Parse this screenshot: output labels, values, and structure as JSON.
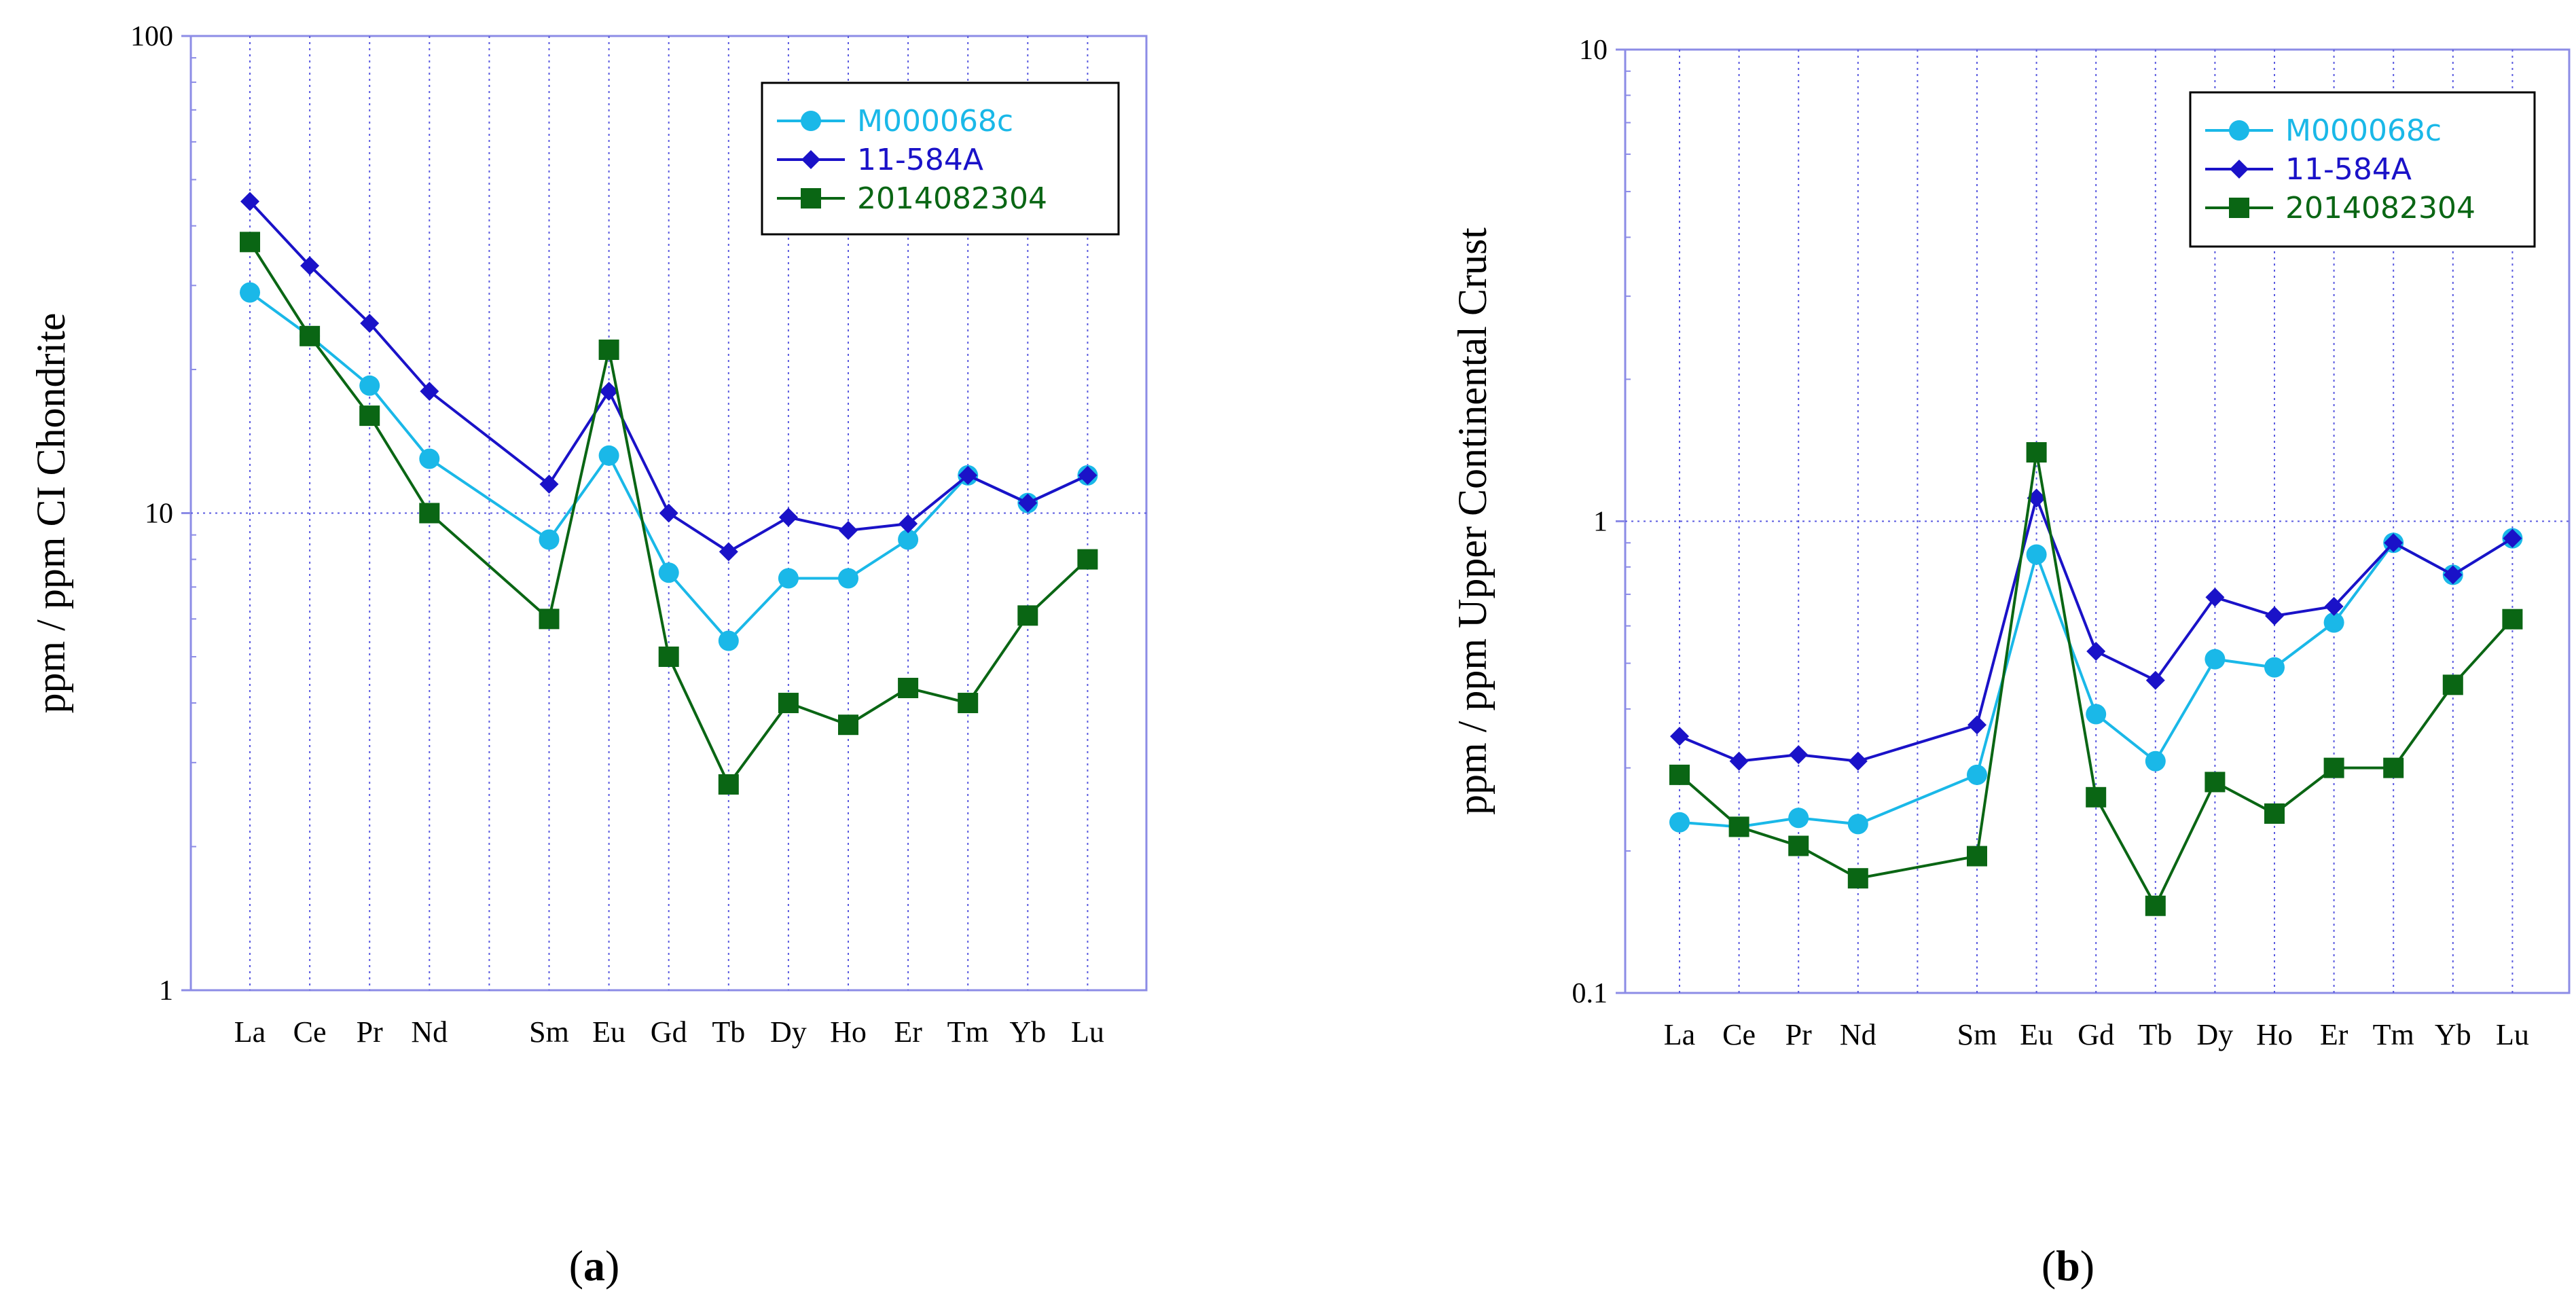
{
  "chart_data": [
    {
      "type": "line",
      "panel_label": "a",
      "categories": [
        "La",
        "Ce",
        "Pr",
        "Nd",
        "",
        "Sm",
        "Eu",
        "Gd",
        "Tb",
        "Dy",
        "Ho",
        "Er",
        "Tm",
        "Yb",
        "Lu"
      ],
      "ylabel": "ppm / ppm CI Chondrite",
      "xlabel": "",
      "yscale": "log",
      "ylim": [
        1,
        100
      ],
      "yticks": [
        1,
        10,
        100
      ],
      "ytick_labels": [
        "1",
        "10",
        "100"
      ],
      "grid": true,
      "legend_position": "top-right",
      "series": [
        {
          "name": "M000068c",
          "color": "#1ab8e8",
          "marker": "circle",
          "values": [
            29,
            23.5,
            18.5,
            13,
            null,
            8.8,
            13.2,
            7.5,
            5.4,
            7.3,
            7.3,
            8.8,
            12,
            10.5,
            12
          ]
        },
        {
          "name": "11-584A",
          "color": "#1a12c8",
          "marker": "diamond",
          "values": [
            45,
            33,
            25,
            18,
            null,
            11.5,
            18,
            10,
            8.3,
            9.8,
            9.2,
            9.5,
            12,
            10.5,
            12
          ]
        },
        {
          "name": "2014082304",
          "color": "#0a6614",
          "marker": "square",
          "values": [
            37,
            23.5,
            16,
            10,
            null,
            6,
            22,
            5,
            2.7,
            4,
            3.6,
            4.3,
            4,
            6.1,
            8
          ]
        }
      ]
    },
    {
      "type": "line",
      "panel_label": "b",
      "categories": [
        "La",
        "Ce",
        "Pr",
        "Nd",
        "",
        "Sm",
        "Eu",
        "Gd",
        "Tb",
        "Dy",
        "Ho",
        "Er",
        "Tm",
        "Yb",
        "Lu"
      ],
      "ylabel": "ppm / ppm Upper Continental Crust",
      "xlabel": "",
      "yscale": "log",
      "ylim": [
        0.1,
        10
      ],
      "yticks": [
        0.1,
        1,
        10
      ],
      "ytick_labels": [
        "0.1",
        "1",
        "10"
      ],
      "grid": true,
      "legend_position": "top-right",
      "series": [
        {
          "name": "M000068c",
          "color": "#1ab8e8",
          "marker": "circle",
          "values": [
            0.23,
            0.225,
            0.235,
            0.228,
            null,
            0.29,
            0.85,
            0.39,
            0.31,
            0.51,
            0.49,
            0.61,
            0.9,
            0.77,
            0.92
          ]
        },
        {
          "name": "11-584A",
          "color": "#1a12c8",
          "marker": "diamond",
          "values": [
            0.35,
            0.31,
            0.32,
            0.31,
            null,
            0.37,
            1.12,
            0.53,
            0.46,
            0.69,
            0.63,
            0.66,
            0.9,
            0.77,
            0.92
          ]
        },
        {
          "name": "2014082304",
          "color": "#0a6614",
          "marker": "square",
          "values": [
            0.29,
            0.225,
            0.205,
            0.175,
            null,
            0.195,
            1.4,
            0.26,
            0.153,
            0.28,
            0.24,
            0.3,
            0.3,
            0.45,
            0.62
          ]
        }
      ]
    }
  ]
}
